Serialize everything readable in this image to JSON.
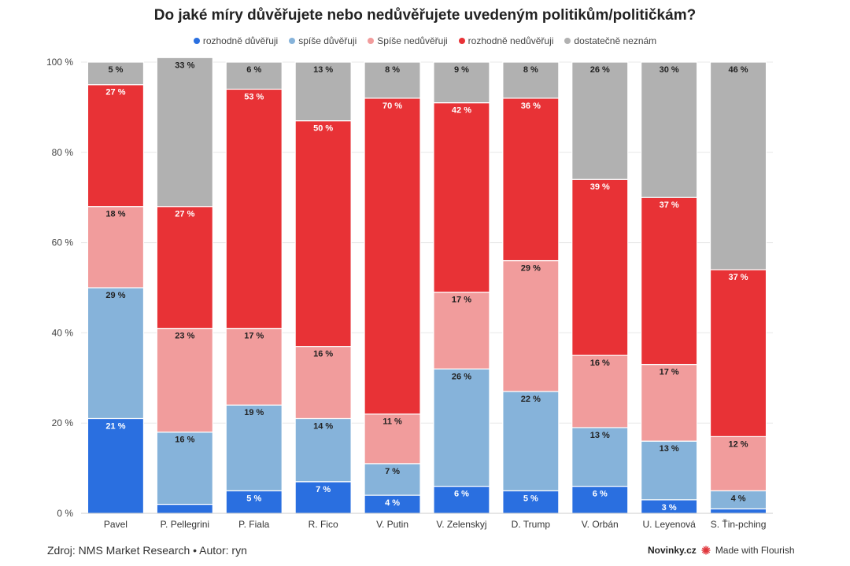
{
  "chart_data": {
    "type": "bar",
    "stacked": true,
    "title": "Do jaké míry důvěřujete nebo nedůvěřujete uvedeným politikům/političkám?",
    "categories": [
      "Pavel",
      "P. Pellegrini",
      "P. Fiala",
      "R. Fico",
      "V. Putin",
      "V. Zelenskyj",
      "D. Trump",
      "V. Orbán",
      "U. Leyenová",
      "S. Ťin-pching"
    ],
    "series": [
      {
        "name": "rozhodně důvěřuji",
        "color": "#2a6fe0",
        "values": [
          21,
          2,
          5,
          7,
          4,
          6,
          5,
          6,
          3,
          1
        ],
        "labels": [
          "21 %",
          "",
          "5 %",
          "7 %",
          "4 %",
          "6 %",
          "5 %",
          "6 %",
          "3 %",
          ""
        ]
      },
      {
        "name": "spíše důvěřuji",
        "color": "#86b3da",
        "values": [
          29,
          16,
          19,
          14,
          7,
          26,
          22,
          13,
          13,
          4
        ],
        "labels": [
          "29 %",
          "16 %",
          "19 %",
          "14 %",
          "7 %",
          "26 %",
          "22 %",
          "13 %",
          "13 %",
          "4 %"
        ]
      },
      {
        "name": "Spíše nedůvěřuji",
        "color": "#f19c9c",
        "values": [
          18,
          23,
          17,
          16,
          11,
          17,
          29,
          16,
          17,
          12
        ],
        "labels": [
          "18 %",
          "23 %",
          "17 %",
          "16 %",
          "11 %",
          "17 %",
          "29 %",
          "16 %",
          "17 %",
          "12 %"
        ]
      },
      {
        "name": "rozhodně nedůvěřuji",
        "color": "#e83236",
        "values": [
          27,
          27,
          53,
          50,
          70,
          42,
          36,
          39,
          37,
          37
        ],
        "labels": [
          "27 %",
          "27 %",
          "53 %",
          "50 %",
          "70 %",
          "42 %",
          "36 %",
          "39 %",
          "37 %",
          "37 %"
        ]
      },
      {
        "name": "dostatečně neznám",
        "color": "#b1b1b1",
        "values": [
          5,
          33,
          6,
          13,
          8,
          9,
          8,
          26,
          30,
          46
        ],
        "labels": [
          "5 %",
          "33 %",
          "6 %",
          "13 %",
          "8 %",
          "9 %",
          "8 %",
          "26 %",
          "30 %",
          "46 %"
        ]
      }
    ],
    "ylim": [
      0,
      100
    ],
    "yticks": [
      "0 %",
      "20 %",
      "40 %",
      "60 %",
      "80 %",
      "100 %"
    ],
    "xlabel": "",
    "ylabel": "",
    "grid": true,
    "legend_position": "top-center",
    "label_colors": {
      "dark": "#222222",
      "light": "#ffffff"
    }
  },
  "footer": {
    "source": "Zdroj: NMS Market Research • Autor: ryn",
    "brand": "Novinky.cz",
    "made_with": "Made with Flourish",
    "flourish_color": "#e0343a"
  }
}
